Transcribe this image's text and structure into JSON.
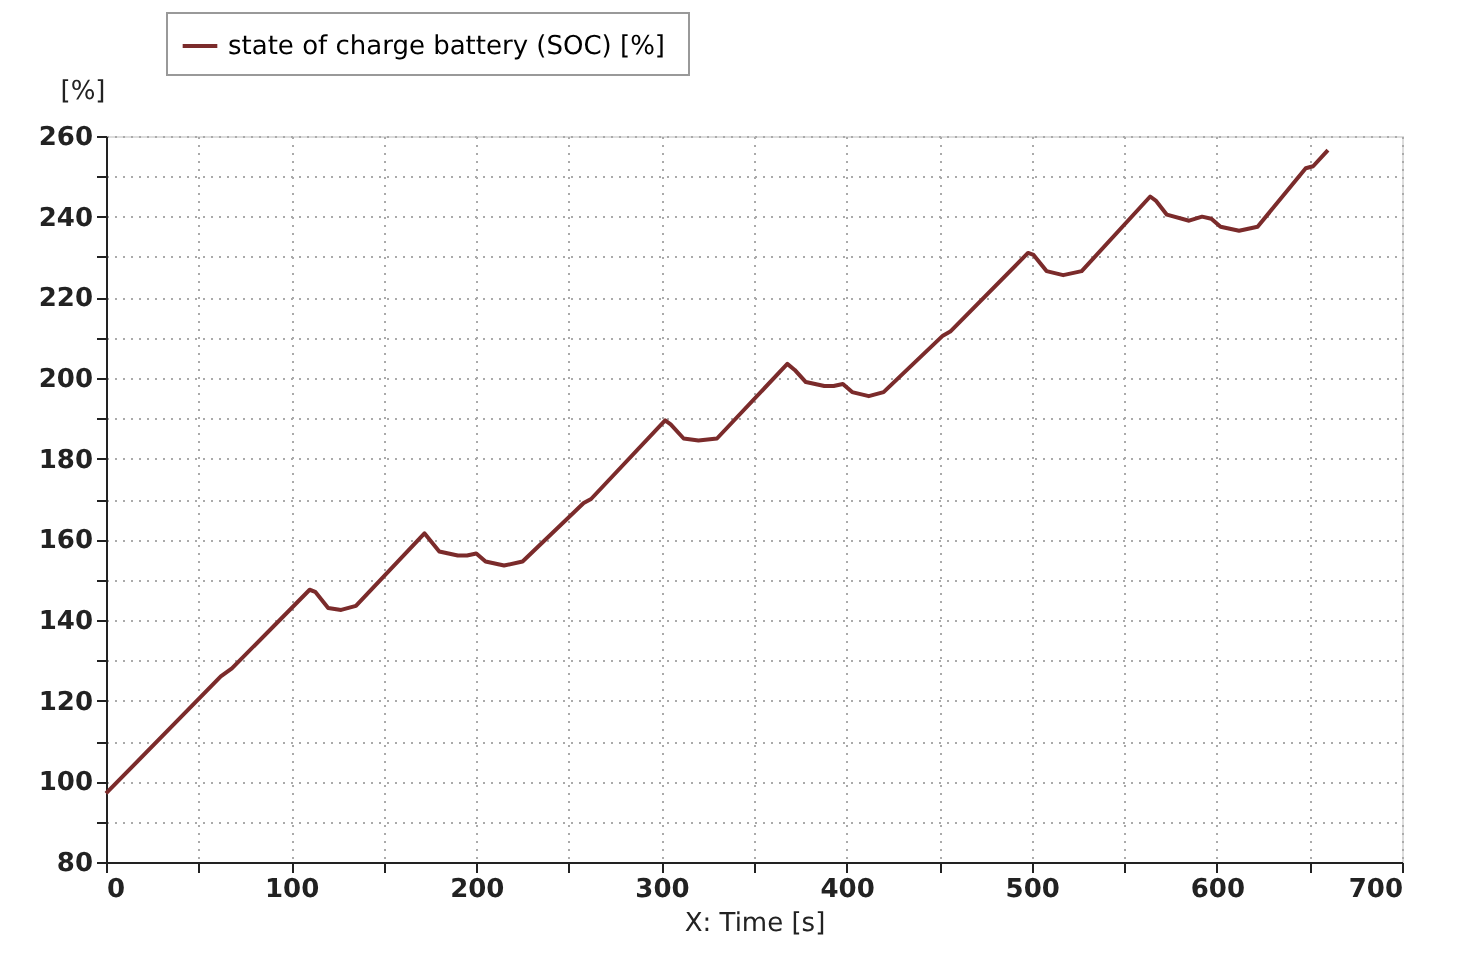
{
  "chart_data": {
    "type": "line",
    "xlabel": "X: Time [s]",
    "ylabel": "[%]",
    "legend": "top left",
    "grid": true,
    "line_style": "solid",
    "marker": "none",
    "xlim": [
      0,
      700
    ],
    "ylim": [
      80,
      260
    ],
    "xticks": [
      0,
      {
        "value": 50,
        "label": null
      },
      100,
      {
        "value": 150,
        "label": null
      },
      200,
      {
        "value": 250,
        "label": null
      },
      300,
      {
        "value": 350,
        "label": null
      },
      400,
      {
        "value": 450,
        "label": null
      },
      500,
      {
        "value": 550,
        "label": null
      },
      600,
      {
        "value": 650,
        "label": null
      },
      700
    ],
    "yticks": [
      80,
      {
        "value": 90,
        "label": null
      },
      100,
      {
        "value": 110,
        "label": null
      },
      120,
      {
        "value": 130,
        "label": null
      },
      140,
      {
        "value": 150,
        "label": null
      },
      160,
      {
        "value": 170,
        "label": null
      },
      180,
      {
        "value": 190,
        "label": null
      },
      200,
      {
        "value": 210,
        "label": null
      },
      220,
      {
        "value": 230,
        "label": null
      },
      240,
      {
        "value": 250,
        "label": null
      },
      260
    ],
    "series": [
      {
        "name": "state of charge battery (SOC)  [%]",
        "color": "#7b2b2b",
        "x": [
          0,
          62,
          68,
          110,
          113,
          120,
          127,
          135,
          172,
          180,
          190,
          195,
          200,
          205,
          215,
          225,
          258,
          262,
          302,
          305,
          312,
          320,
          330,
          368,
          372,
          378,
          388,
          393,
          398,
          403,
          412,
          420,
          452,
          456,
          498,
          501,
          508,
          517,
          527,
          564,
          567,
          573,
          585,
          592,
          597,
          602,
          612,
          622,
          648,
          652,
          660
        ],
        "values": [
          97,
          126,
          128,
          147.5,
          147,
          143,
          142.5,
          143.5,
          161.5,
          157,
          156,
          156,
          156.5,
          154.5,
          153.5,
          154.5,
          169,
          170,
          189.5,
          188.5,
          185,
          184.5,
          185,
          203.5,
          202,
          199,
          198,
          198,
          198.5,
          196.5,
          195.5,
          196.5,
          210.5,
          211.5,
          231,
          230.5,
          226.5,
          225.5,
          226.5,
          245,
          244,
          240.5,
          239,
          240,
          239.5,
          237.5,
          236.5,
          237.5,
          252,
          252.5,
          256.5
        ]
      }
    ]
  }
}
